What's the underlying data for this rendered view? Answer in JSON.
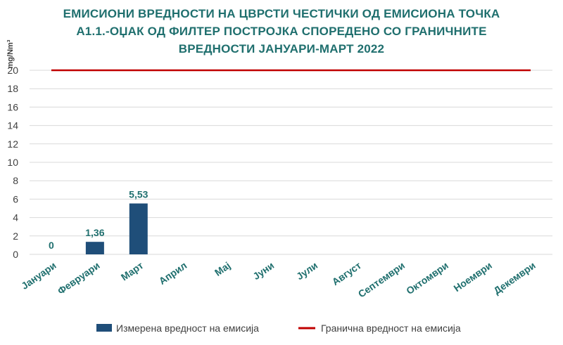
{
  "chart_data": {
    "type": "bar",
    "title_lines": [
      "ЕМИСИОНИ ВРЕДНОСТИ НА ЦВРСТИ ЧЕСТИЧКИ ОД ЕМИСИОНА ТОЧКА",
      "А1.1.-ОЏАК ОД ФИЛТЕР ПОСТРОЈКА СПОРЕДЕНО СО ГРАНИЧНИТЕ",
      "ВРЕДНОСТИ ЈАНУАРИ-МАРТ 2022"
    ],
    "ylabel": "mg/Nm³",
    "ylim": [
      0,
      20
    ],
    "yticks": [
      0,
      2,
      4,
      6,
      8,
      10,
      12,
      14,
      16,
      18,
      20
    ],
    "grid": true,
    "categories": [
      "Јануари",
      "Февруари",
      "Март",
      "Април",
      "Мај",
      "Јуни",
      "Јули",
      "Август",
      "Септември",
      "Октомври",
      "Ноември",
      "Декември"
    ],
    "series": [
      {
        "name": "Измерена вредност на емисија",
        "kind": "bar",
        "color": "#1f4e79",
        "values": [
          0,
          1.36,
          5.53,
          null,
          null,
          null,
          null,
          null,
          null,
          null,
          null,
          null
        ],
        "labels": [
          "0",
          "1,36",
          "5,53",
          "",
          "",
          "",
          "",
          "",
          "",
          "",
          "",
          ""
        ]
      },
      {
        "name": "Гранична вредност на емисија",
        "kind": "line",
        "color": "#c00000",
        "values": [
          20,
          20,
          20,
          20,
          20,
          20,
          20,
          20,
          20,
          20,
          20,
          20
        ]
      }
    ],
    "legend_position": "bottom",
    "title_color": "#1f6f6e",
    "label_color": "#1f6f6e"
  }
}
